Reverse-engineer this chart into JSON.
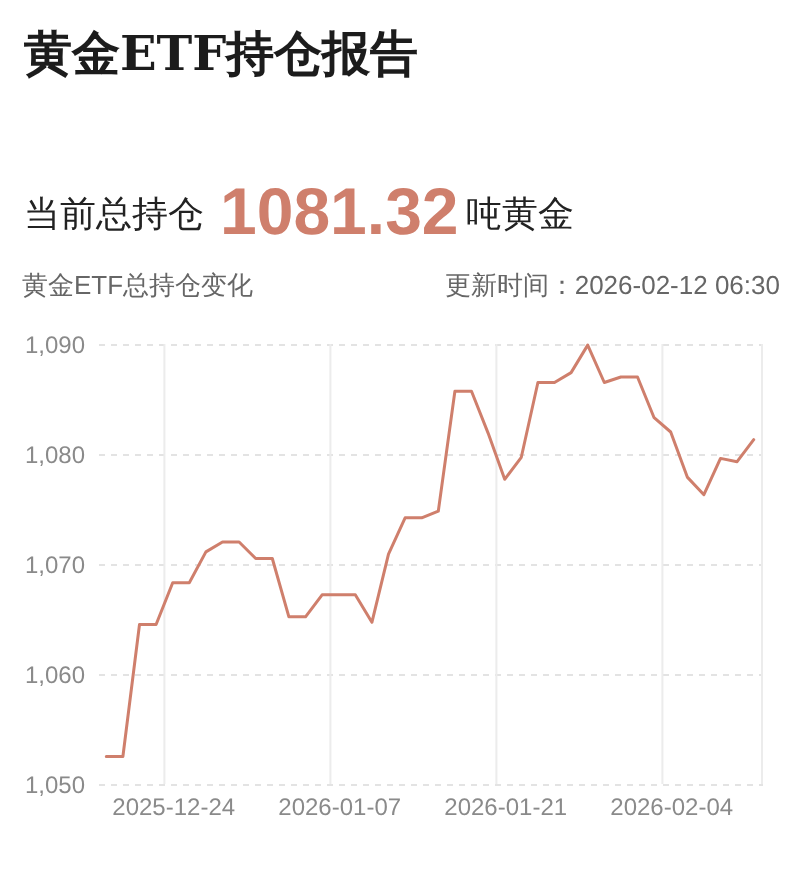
{
  "chart_data": {
    "type": "line",
    "title": "黄金ETF持仓报告",
    "subtitle": "黄金ETF总持仓变化",
    "annotations": [
      "当前总持仓",
      "1081.32",
      "吨黄金",
      "更新时间：2026-02-12 06:30"
    ],
    "categories": [
      null,
      null,
      null,
      null,
      "2025-12-24",
      null,
      null,
      null,
      null,
      null,
      null,
      null,
      null,
      null,
      "2026-01-07",
      null,
      null,
      null,
      null,
      null,
      null,
      null,
      null,
      null,
      "2026-01-21",
      null,
      null,
      null,
      null,
      null,
      null,
      null,
      null,
      null,
      "2026-02-04",
      null,
      null,
      null,
      null,
      null
    ],
    "series": [
      {
        "color": "#cf7f6c",
        "values": [
          1052.5,
          1052.5,
          1064.5,
          1064.5,
          1068.3,
          1068.3,
          1071.1,
          1072.0,
          1072.0,
          1070.5,
          1070.5,
          1065.2,
          1065.2,
          1067.2,
          1067.2,
          1067.2,
          1064.7,
          1070.9,
          1074.2,
          1074.2,
          1074.8,
          1085.7,
          1085.7,
          1081.9,
          1077.7,
          1079.7,
          1086.5,
          1086.5,
          1087.4,
          1089.9,
          1086.5,
          1087.0,
          1087.0,
          1083.3,
          1082.0,
          1077.9,
          1076.3,
          1079.6,
          1079.3,
          1081.3
        ]
      }
    ],
    "ylim": [
      1050,
      1090
    ],
    "yticks": [
      {
        "value": 1050,
        "label": "1,050"
      },
      {
        "value": 1060,
        "label": "1,060"
      },
      {
        "value": 1070,
        "label": "1,070"
      },
      {
        "value": 1080,
        "label": "1,080"
      },
      {
        "value": 1090,
        "label": "1,090"
      }
    ],
    "grid": true,
    "line_style": "solid"
  }
}
